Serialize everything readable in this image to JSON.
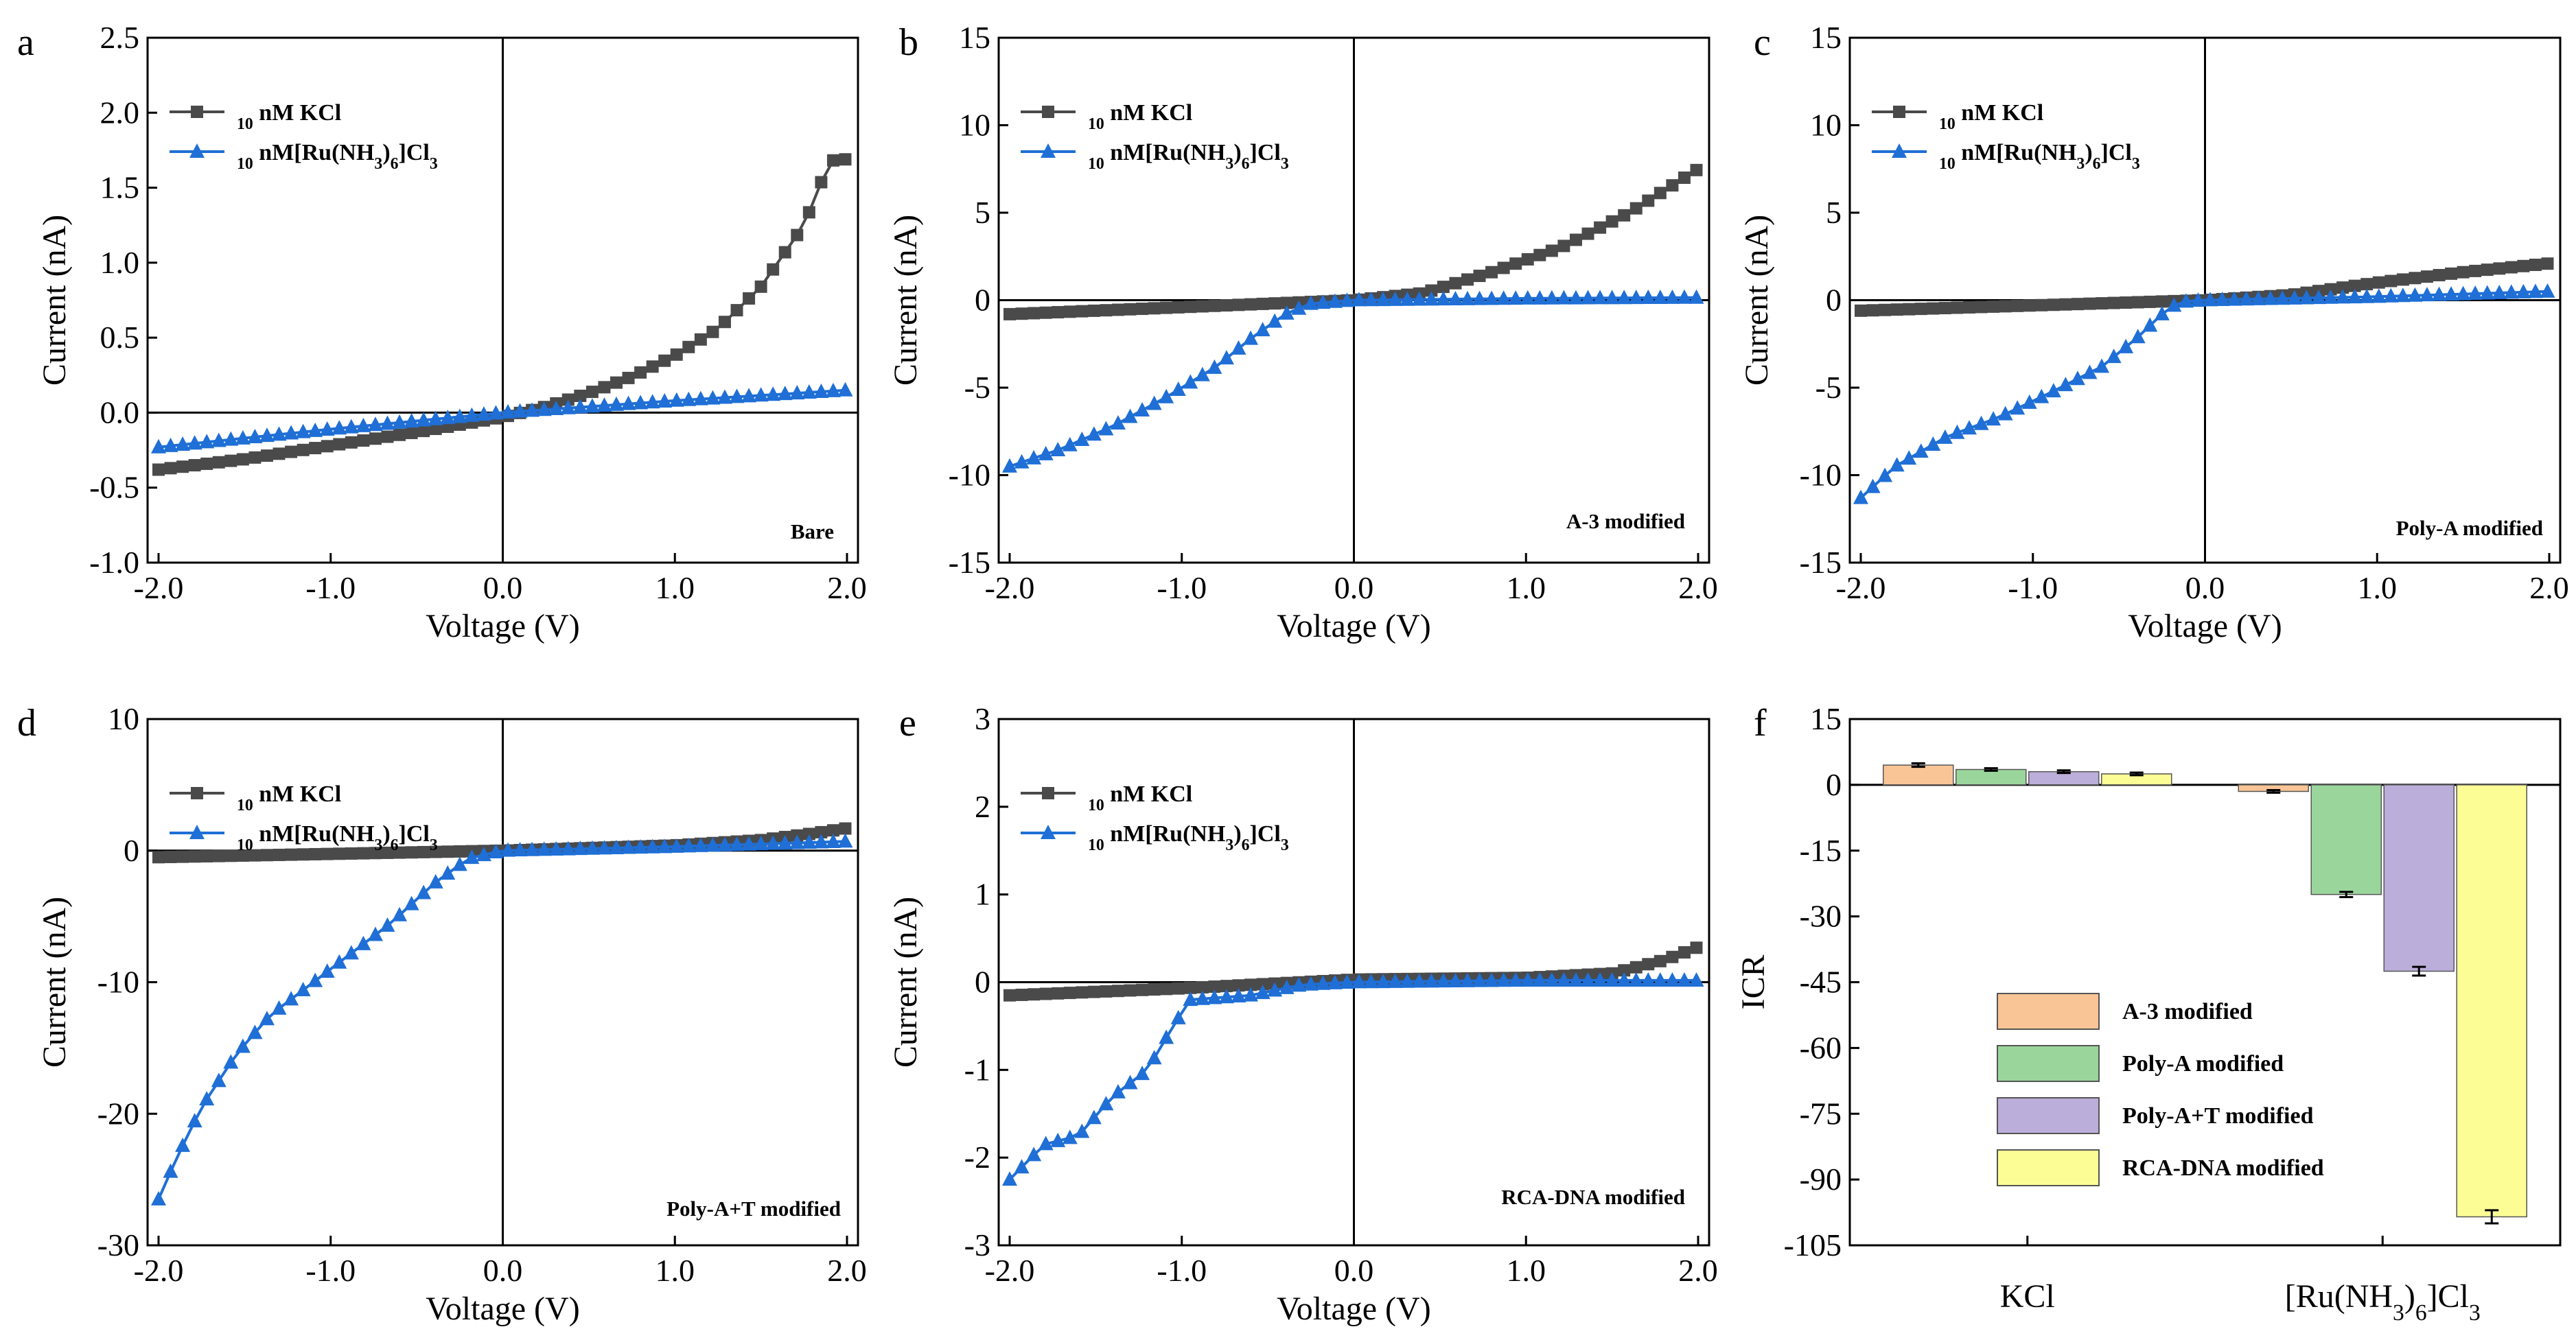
{
  "chart_data": [
    {
      "id": "a",
      "type": "line",
      "panel_letter": "a",
      "xlabel": "Voltage (V)",
      "ylabel": "Current (nA)",
      "xlim": [
        -2.0,
        2.0
      ],
      "ylim": [
        -1.0,
        2.5
      ],
      "xticks": [
        -2.0,
        -1.0,
        0.0,
        1.0,
        2.0
      ],
      "xtick_labels": [
        "-2.0",
        "-1.0",
        "0.0",
        "1.0",
        "2.0"
      ],
      "yticks": [
        -1.0,
        -0.5,
        0.0,
        0.5,
        1.0,
        1.5,
        2.0,
        2.5
      ],
      "ytick_labels": [
        "-1.0",
        "-0.5",
        "0.0",
        "0.5",
        "1.0",
        "1.5",
        "2.0",
        "2.5"
      ],
      "annotation": "Bare",
      "legend": {
        "position": "top-left",
        "entries": [
          "10 nM KCl",
          "10 nM[Ru(NH3)6]Cl3"
        ]
      },
      "series": [
        {
          "name": "10 nM KCl",
          "marker": "square",
          "color": "#4a4a4a",
          "x": [
            -2.0,
            -1.5,
            -1.0,
            -0.5,
            0.0,
            0.25,
            0.5,
            0.75,
            1.0,
            1.25,
            1.5,
            1.75,
            1.9,
            2.0
          ],
          "y": [
            -0.38,
            -0.31,
            -0.22,
            -0.13,
            -0.03,
            0.04,
            0.13,
            0.24,
            0.38,
            0.56,
            0.84,
            1.25,
            1.68,
            1.69
          ]
        },
        {
          "name": "10 nM[Ru(NH3)6]Cl3",
          "marker": "triangle",
          "color": "#1f6fd6",
          "x": [
            -2.0,
            -1.0,
            0.0,
            1.0,
            2.0
          ],
          "y": [
            -0.23,
            -0.11,
            0.0,
            0.08,
            0.15
          ]
        }
      ]
    },
    {
      "id": "b",
      "type": "line",
      "panel_letter": "b",
      "xlabel": "Voltage (V)",
      "ylabel": "Current (nA)",
      "xlim": [
        -2.0,
        2.0
      ],
      "ylim": [
        -15,
        15
      ],
      "xticks": [
        -2.0,
        -1.0,
        0.0,
        1.0,
        2.0
      ],
      "xtick_labels": [
        "-2.0",
        "-1.0",
        "0.0",
        "1.0",
        "2.0"
      ],
      "yticks": [
        -15,
        -10,
        -5,
        0,
        5,
        10,
        15
      ],
      "ytick_labels": [
        "-15",
        "-10",
        "-5",
        "0",
        "5",
        "10",
        "15"
      ],
      "annotation": "A-3 modified",
      "legend": {
        "position": "top-left",
        "entries": [
          "10 nM KCl",
          "10 nM[Ru(NH3)6]Cl3"
        ]
      },
      "series": [
        {
          "name": "10 nM KCl",
          "marker": "square",
          "color": "#4a4a4a",
          "x": [
            -2.0,
            -1.0,
            0.0,
            0.4,
            0.8,
            1.2,
            1.6,
            2.0
          ],
          "y": [
            -0.8,
            -0.4,
            0.0,
            0.4,
            1.6,
            3.0,
            5.0,
            7.5
          ]
        },
        {
          "name": "10 nM[Ru(NH3)6]Cl3",
          "marker": "triangle",
          "color": "#1f6fd6",
          "x": [
            -2.0,
            -1.7,
            -1.4,
            -1.1,
            -0.8,
            -0.6,
            -0.4,
            -0.25,
            0.0,
            1.0,
            2.0
          ],
          "y": [
            -9.5,
            -8.5,
            -7.2,
            -5.6,
            -3.8,
            -2.2,
            -0.8,
            -0.2,
            0.0,
            0.1,
            0.15
          ]
        }
      ]
    },
    {
      "id": "c",
      "type": "line",
      "panel_letter": "c",
      "xlabel": "Voltage (V)",
      "ylabel": "Current (nA)",
      "xlim": [
        -2.0,
        2.0
      ],
      "ylim": [
        -15,
        15
      ],
      "xticks": [
        -2.0,
        -1.0,
        0.0,
        1.0,
        2.0
      ],
      "xtick_labels": [
        "-2.0",
        "-1.0",
        "0.0",
        "1.0",
        "2.0"
      ],
      "yticks": [
        -15,
        -10,
        -5,
        0,
        5,
        10,
        15
      ],
      "ytick_labels": [
        "-15",
        "-10",
        "-5",
        "0",
        "5",
        "10",
        "15"
      ],
      "annotation": "Poly-A modified",
      "legend": {
        "position": "top-left",
        "entries": [
          "10 nM KCl",
          "10 nM[Ru(NH3)6]Cl3"
        ]
      },
      "series": [
        {
          "name": "10 nM KCl",
          "marker": "square",
          "color": "#4a4a4a",
          "x": [
            -2.0,
            -1.0,
            0.0,
            0.5,
            1.0,
            1.5,
            2.0
          ],
          "y": [
            -0.6,
            -0.3,
            0.0,
            0.3,
            1.0,
            1.6,
            2.1
          ]
        },
        {
          "name": "10 nM[Ru(NH3)6]Cl3",
          "marker": "triangle",
          "color": "#1f6fd6",
          "x": [
            -2.0,
            -1.8,
            -1.5,
            -1.2,
            -0.9,
            -0.6,
            -0.4,
            -0.25,
            -0.15,
            0.0,
            1.0,
            2.0
          ],
          "y": [
            -11.3,
            -9.5,
            -7.8,
            -6.7,
            -5.3,
            -3.8,
            -2.2,
            -0.8,
            -0.1,
            0.0,
            0.2,
            0.5
          ]
        }
      ]
    },
    {
      "id": "d",
      "type": "line",
      "panel_letter": "d",
      "xlabel": "Voltage (V)",
      "ylabel": "Current (nA)",
      "xlim": [
        -2.0,
        2.0
      ],
      "ylim": [
        -30,
        10
      ],
      "xticks": [
        -2.0,
        -1.0,
        0.0,
        1.0,
        2.0
      ],
      "xtick_labels": [
        "-2.0",
        "-1.0",
        "0.0",
        "1.0",
        "2.0"
      ],
      "yticks": [
        -30,
        -20,
        -10,
        0,
        10
      ],
      "ytick_labels": [
        "-30",
        "-20",
        "-10",
        "0",
        "10"
      ],
      "annotation": "Poly-A+T modified",
      "legend": {
        "position": "top-left",
        "entries": [
          "10 nM KCl",
          "10 nM[Ru(NH3)6]Cl3"
        ]
      },
      "series": [
        {
          "name": "10 nM KCl",
          "marker": "square",
          "color": "#4a4a4a",
          "x": [
            -2.0,
            -1.0,
            0.0,
            1.0,
            1.5,
            1.8,
            2.0
          ],
          "y": [
            -0.5,
            -0.25,
            0.0,
            0.4,
            0.8,
            1.3,
            1.7
          ]
        },
        {
          "name": "10 nM[Ru(NH3)6]Cl3",
          "marker": "triangle",
          "color": "#1f6fd6",
          "x": [
            -2.0,
            -1.9,
            -1.75,
            -1.55,
            -1.35,
            -1.15,
            -0.9,
            -0.65,
            -0.4,
            -0.2,
            0.0,
            1.0,
            2.0
          ],
          "y": [
            -26.5,
            -23.5,
            -19.5,
            -15.5,
            -12.5,
            -10.5,
            -8.0,
            -5.5,
            -2.5,
            -0.6,
            0.0,
            0.3,
            0.7
          ]
        }
      ]
    },
    {
      "id": "e",
      "type": "line",
      "panel_letter": "e",
      "xlabel": "Voltage (V)",
      "ylabel": "Current (nA)",
      "xlim": [
        -2.0,
        2.0
      ],
      "ylim": [
        -3,
        3
      ],
      "xticks": [
        -2.0,
        -1.0,
        0.0,
        1.0,
        2.0
      ],
      "xtick_labels": [
        "-2.0",
        "-1.0",
        "0.0",
        "1.0",
        "2.0"
      ],
      "yticks": [
        -3,
        -2,
        -1,
        0,
        1,
        2,
        3
      ],
      "ytick_labels": [
        "-3",
        "-2",
        "-1",
        "0",
        "1",
        "2",
        "3"
      ],
      "annotation": "RCA-DNA modified",
      "legend": {
        "position": "top-left",
        "entries": [
          "10 nM KCl",
          "10 nM[Ru(NH3)6]Cl3"
        ]
      },
      "series": [
        {
          "name": "10 nM KCl",
          "marker": "square",
          "color": "#4a4a4a",
          "x": [
            -2.0,
            -1.0,
            0.0,
            1.0,
            1.5,
            1.8,
            2.0
          ],
          "y": [
            -0.15,
            -0.07,
            0.03,
            0.05,
            0.1,
            0.25,
            0.4
          ]
        },
        {
          "name": "10 nM[Ru(NH3)6]Cl3",
          "marker": "triangle",
          "color": "#1f6fd6",
          "x": [
            -2.0,
            -1.8,
            -1.6,
            -1.4,
            -1.2,
            -1.05,
            -0.95,
            -0.6,
            -0.3,
            0.0,
            1.0,
            2.0
          ],
          "y": [
            -2.25,
            -1.85,
            -1.75,
            -1.3,
            -1.0,
            -0.5,
            -0.2,
            -0.15,
            -0.03,
            0.0,
            0.02,
            0.02
          ]
        }
      ]
    },
    {
      "id": "f",
      "type": "bar",
      "panel_letter": "f",
      "xlabel": "",
      "ylabel": "ICR",
      "ylim": [
        -105,
        15
      ],
      "yticks": [
        -105,
        -90,
        -75,
        -60,
        -45,
        -30,
        -15,
        0,
        15
      ],
      "ytick_labels": [
        "-105",
        "-90",
        "-75",
        "-60",
        "-45",
        "-30",
        "-15",
        "0",
        "15"
      ],
      "categories": [
        "KCl",
        "[Ru(NH3)6]Cl3"
      ],
      "legend": {
        "position": "bottom-left"
      },
      "series": [
        {
          "name": "A-3 modified",
          "color": "#f9c596",
          "values": [
            4.5,
            -1.5
          ],
          "errors": [
            0.4,
            0.3
          ]
        },
        {
          "name": "Poly-A modified",
          "color": "#9ad69b",
          "values": [
            3.5,
            -25.0
          ],
          "errors": [
            0.3,
            0.6
          ]
        },
        {
          "name": "Poly-A+T modified",
          "color": "#bcaedb",
          "values": [
            3.0,
            -42.5
          ],
          "errors": [
            0.3,
            1.0
          ]
        },
        {
          "name": "RCA-DNA modified",
          "color": "#fdfd96",
          "values": [
            2.5,
            -98.5
          ],
          "errors": [
            0.3,
            1.5
          ]
        }
      ]
    }
  ]
}
